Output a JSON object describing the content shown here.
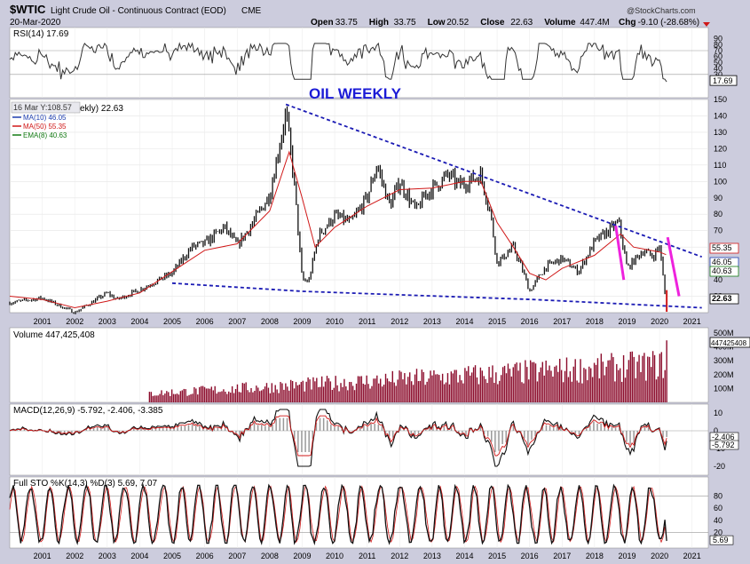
{
  "header": {
    "symbol": "$WTIC",
    "name": "Light Crude Oil - Continuous Contract (EOD)",
    "exchange": "CME",
    "date": "20-Mar-2020",
    "credit": "@StockCharts.com",
    "stats": [
      {
        "label": "Open",
        "value": "33.75"
      },
      {
        "label": "High",
        "value": "33.75"
      },
      {
        "label": "Low",
        "value": "20.52"
      },
      {
        "label": "Close",
        "value": "22.63"
      },
      {
        "label": "Volume",
        "value": "447.4M"
      },
      {
        "label": "Chg",
        "value": "-9.10 (-28.68%)"
      }
    ]
  },
  "colors": {
    "background": "#ccccdd",
    "panel": "#ffffff",
    "price_bar": "#111111",
    "ma10": "#1f3fb0",
    "ma50": "#d01818",
    "ema8": "#137a13",
    "trendline": "#1b1bb4",
    "magenta": "#ee22dd",
    "volume_bar": "#8b0b2b",
    "annotation": "#1b1bd6"
  },
  "annotation": "OIL WEEKLY",
  "chart_data": [
    {
      "type": "line",
      "panel": "rsi",
      "legend": "RSI(14) 17.69",
      "current_label": "17.69",
      "ylim": [
        0,
        100
      ],
      "y_ticks": [
        "90",
        "80",
        "70",
        "60",
        "50",
        "40",
        "30",
        "20"
      ],
      "reference_lines": [
        30,
        70
      ]
    },
    {
      "type": "line",
      "panel": "price",
      "tooltip": "16 Mar Y:108.57",
      "legend_title": "ekly) 22.63",
      "legend": [
        {
          "name": "MA(10) 46.05",
          "color": "#1f3fb0"
        },
        {
          "name": "MA(50) 55.35",
          "color": "#d01818"
        },
        {
          "name": "EMA(8) 40.63",
          "color": "#137a13"
        }
      ],
      "x": [
        2000.0,
        2001.0,
        2001.9,
        2002.0,
        2003.0,
        2003.3,
        2004.0,
        2005.0,
        2005.6,
        2006.0,
        2006.6,
        2007.0,
        2007.5,
        2008.0,
        2008.5,
        2008.75,
        2009.0,
        2009.2,
        2009.5,
        2010.0,
        2010.5,
        2011.0,
        2011.3,
        2011.7,
        2012.0,
        2012.5,
        2012.8,
        2013.5,
        2013.8,
        2014.0,
        2014.5,
        2014.8,
        2015.0,
        2015.5,
        2015.8,
        2016.0,
        2016.5,
        2017.0,
        2017.5,
        2018.0,
        2018.75,
        2019.0,
        2019.5,
        2019.8,
        2020.0,
        2020.17,
        2020.22
      ],
      "close": [
        26,
        29,
        21,
        20,
        32,
        28,
        34,
        44,
        60,
        62,
        72,
        61,
        75,
        92,
        142,
        100,
        40,
        39,
        67,
        79,
        75,
        90,
        110,
        85,
        100,
        82,
        92,
        104,
        98,
        99,
        104,
        80,
        50,
        60,
        45,
        33,
        48,
        53,
        45,
        63,
        75,
        47,
        58,
        54,
        61,
        31,
        22.63
      ],
      "ma50_x": [
        2000.0,
        2001.0,
        2002.0,
        2003.0,
        2004.0,
        2005.0,
        2006.0,
        2007.0,
        2008.0,
        2008.6,
        2009.0,
        2009.4,
        2010.0,
        2011.0,
        2012.0,
        2013.0,
        2014.0,
        2014.5,
        2015.0,
        2015.5,
        2016.0,
        2016.5,
        2017.0,
        2018.0,
        2018.8,
        2019.2,
        2020.0,
        2020.2
      ],
      "ma50": [
        30,
        28,
        23,
        27,
        32,
        45,
        58,
        62,
        82,
        118,
        90,
        60,
        72,
        85,
        95,
        96,
        100,
        100,
        75,
        60,
        44,
        40,
        47,
        55,
        68,
        60,
        57,
        55.35
      ],
      "ylim": [
        20,
        150
      ],
      "y_ticks": [
        "150",
        "140",
        "130",
        "120",
        "110",
        "100",
        "90",
        "80",
        "70",
        "60",
        "50",
        "40",
        "30"
      ],
      "x_ticks": [
        "2001",
        "2002",
        "2003",
        "2004",
        "2005",
        "2006",
        "2007",
        "2008",
        "2009",
        "2010",
        "2011",
        "2012",
        "2013",
        "2014",
        "2015",
        "2016",
        "2017",
        "2018",
        "2019",
        "2020",
        "2021"
      ],
      "price_labels": [
        "55.35",
        "46.05",
        "40.63",
        "22.63"
      ],
      "trendlines": [
        {
          "kind": "resistance",
          "x": [
            2008.5,
            2021.3
          ],
          "y": [
            147,
            54
          ]
        },
        {
          "kind": "support",
          "x": [
            2005.0,
            2009.0,
            2016.1,
            2021.3
          ],
          "y": [
            38,
            33,
            28,
            23
          ]
        },
        {
          "kind": "magenta",
          "x": [
            2018.65,
            2018.9
          ],
          "y": [
            73,
            40
          ]
        },
        {
          "kind": "magenta",
          "x": [
            2020.25,
            2020.6
          ],
          "y": [
            66,
            30
          ]
        }
      ]
    },
    {
      "type": "bar",
      "panel": "volume",
      "legend": "Volume 447,425,408",
      "current_label": "447425408",
      "ylim": [
        0,
        500
      ],
      "y_ticks": [
        "500M",
        "400M",
        "300M",
        "200M",
        "100M"
      ]
    },
    {
      "type": "line",
      "panel": "macd",
      "legend": "MACD(12,26,9) -5.792, -2.406, -3.385",
      "current_labels": [
        "-2.406",
        "-5.792"
      ],
      "ylim": [
        -25,
        15
      ],
      "y_ticks": [
        "10",
        "0",
        "-10",
        "-20"
      ]
    },
    {
      "type": "line",
      "panel": "stochastic",
      "legend": "Full STO %K(14,3) %D(3) 5.69, 7.07",
      "current_label": "5.69",
      "ylim": [
        0,
        100
      ],
      "y_ticks": [
        "80",
        "60",
        "40",
        "20"
      ],
      "reference_lines": [
        20,
        80
      ],
      "x_ticks": [
        "2001",
        "2002",
        "2003",
        "2004",
        "2005",
        "2006",
        "2007",
        "2008",
        "2009",
        "2010",
        "2011",
        "2012",
        "2013",
        "2014",
        "2015",
        "2016",
        "2017",
        "2018",
        "2019",
        "2020",
        "2021"
      ]
    }
  ]
}
